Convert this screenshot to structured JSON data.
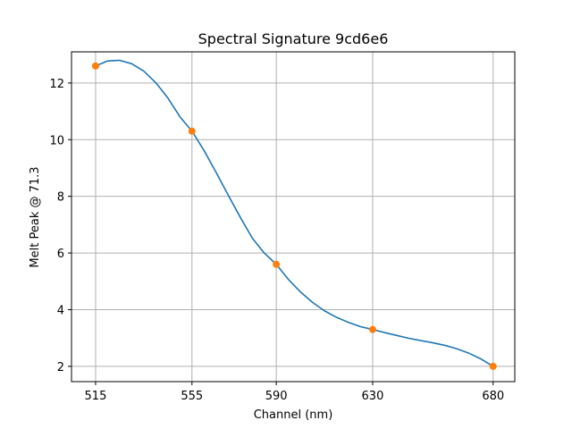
{
  "chart_data": {
    "type": "line",
    "title": "Spectral Signature 9cd6e6",
    "xlabel": "Channel (nm)",
    "ylabel": "Melt Peak @ 71.3",
    "xlim": [
      505,
      689
    ],
    "ylim": [
      1.46,
      13.1
    ],
    "xticks": [
      515,
      555,
      590,
      630,
      680
    ],
    "yticks": [
      2,
      4,
      6,
      8,
      10,
      12
    ],
    "grid": true,
    "series": [
      {
        "type": "line",
        "color": "#1f77b4",
        "x": [
          515,
          520,
          525,
          530,
          535,
          540,
          545,
          550,
          555,
          560,
          565,
          570,
          575,
          580,
          585,
          590,
          595,
          600,
          605,
          610,
          615,
          620,
          625,
          630,
          635,
          640,
          645,
          650,
          655,
          660,
          665,
          670,
          675,
          680
        ],
        "y": [
          12.6,
          12.78,
          12.8,
          12.68,
          12.42,
          12.01,
          11.47,
          10.81,
          10.3,
          9.62,
          8.85,
          8.05,
          7.27,
          6.53,
          6.0,
          5.6,
          5.07,
          4.63,
          4.26,
          3.96,
          3.73,
          3.55,
          3.4,
          3.3,
          3.19,
          3.09,
          2.99,
          2.91,
          2.83,
          2.74,
          2.62,
          2.46,
          2.26,
          2.0
        ]
      },
      {
        "type": "scatter",
        "color": "#ff7f0e",
        "x": [
          515,
          555,
          590,
          630,
          680
        ],
        "y": [
          12.6,
          10.3,
          5.6,
          3.3,
          2.0
        ]
      }
    ]
  }
}
